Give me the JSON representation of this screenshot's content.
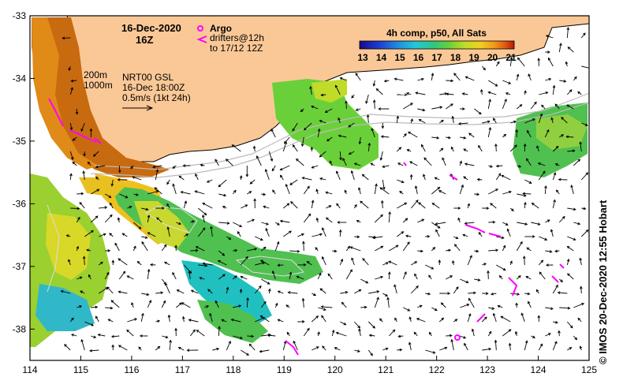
{
  "title": {
    "date": "16-Dec-2020",
    "time": "16Z"
  },
  "legend": {
    "argo_label": "Argo",
    "drifters_line1": "drifters@12h",
    "drifters_line2": "to 17/12 12Z",
    "colorbar_title": "4h comp, p50, All Sats",
    "colorbar_ticks": [
      "13",
      "14",
      "15",
      "16",
      "17",
      "18",
      "19",
      "20",
      "21"
    ],
    "colors": [
      "#1a0a8c",
      "#1f3ad0",
      "#1f8ee0",
      "#22c8d8",
      "#2ec880",
      "#6ad03a",
      "#c0dc28",
      "#f0d020",
      "#f09a18",
      "#e05a10",
      "#b81808"
    ]
  },
  "contours": {
    "iso_200": "200m",
    "iso_1000": "1000m",
    "model_label": "NRT00 GSL",
    "model_time": "16-Dec 18:00Z",
    "scale_label": "0.5m/s (1kt 24h)"
  },
  "axes": {
    "x_ticks": [
      "114",
      "115",
      "116",
      "117",
      "118",
      "119",
      "120",
      "121",
      "122",
      "123",
      "124",
      "125"
    ],
    "y_ticks": [
      "-33",
      "-34",
      "-35",
      "-36",
      "-37",
      "-38"
    ],
    "lon_range": [
      114,
      125
    ],
    "lat_range": [
      -38.5,
      -33
    ]
  },
  "colors": {
    "land": "#fac896",
    "coast": "#000000",
    "argo": "#ff00ff",
    "drifter": "#ff00ff"
  },
  "credit": "© IMOS 20-Dec-2020 12:55 Hobart",
  "argo_floats": [
    {
      "lon": 122.4,
      "lat": -38.13
    }
  ]
}
